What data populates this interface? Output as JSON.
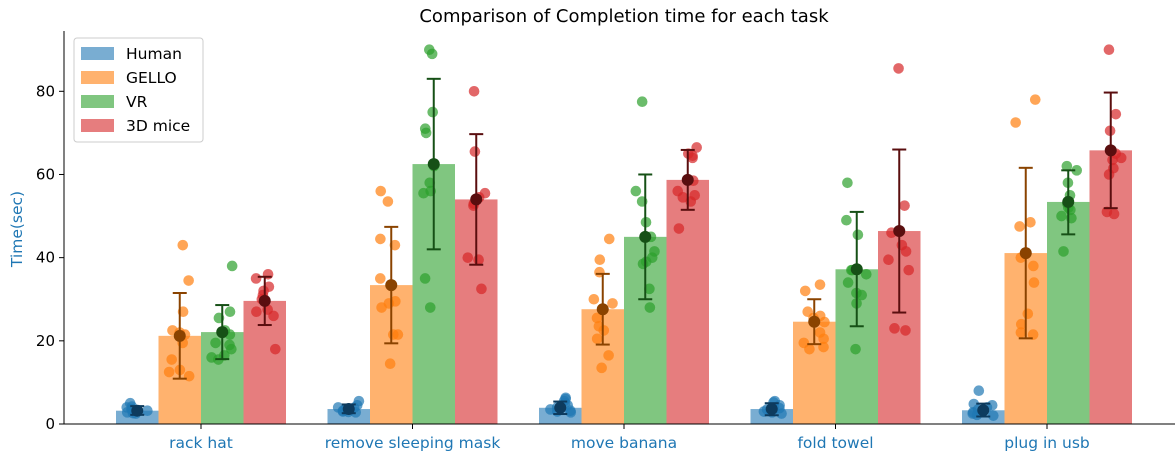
{
  "chart_data": {
    "type": "bar",
    "title": "Comparison of Completion time for each task",
    "xlabel": "",
    "ylabel": "Time(sec)",
    "ylim": [
      0,
      94.5
    ],
    "yticks": [
      0,
      20,
      40,
      60,
      80
    ],
    "legend_position": "top-left",
    "grid": false,
    "label_color": "#1f77b4",
    "categories": [
      "rack hat",
      "remove sleeping mask",
      "move banana",
      "fold towel",
      "plug in usb"
    ],
    "series": [
      {
        "name": "Human",
        "bar_color": "#1f77b4",
        "dot_color": "#1f77b4",
        "mean_color": "#0d3b5e",
        "values": [
          3.2,
          3.6,
          3.9,
          3.6,
          3.3
        ],
        "err_low": [
          2.2,
          2.6,
          2.4,
          2.1,
          1.8
        ],
        "err_high": [
          4.3,
          4.7,
          5.4,
          5.0,
          4.9
        ],
        "points": [
          [
            2.5,
            3.0,
            3.5,
            4.0,
            5.0,
            2.8,
            3.2,
            4.2,
            3.6,
            2.6
          ],
          [
            3.0,
            3.5,
            4.0,
            5.5,
            2.8,
            3.2,
            4.5,
            3.7,
            2.9,
            3.9
          ],
          [
            3.0,
            4.0,
            5.0,
            6.0,
            6.3,
            3.5,
            2.8,
            4.5,
            3.2,
            5.5
          ],
          [
            2.5,
            3.5,
            4.0,
            5.5,
            3.0,
            4.5,
            2.8,
            3.8,
            5.2,
            3.3
          ],
          [
            2.0,
            3.0,
            4.0,
            4.5,
            8.0,
            2.5,
            3.5,
            2.2,
            4.8,
            2.8
          ]
        ]
      },
      {
        "name": "GELLO",
        "bar_color": "#ff7f0e",
        "dot_color": "#ff7f0e",
        "mean_color": "#8a4300",
        "values": [
          21.2,
          33.4,
          27.6,
          24.6,
          41.1
        ],
        "err_low": [
          10.9,
          19.4,
          19.1,
          19.2,
          20.6
        ],
        "err_high": [
          31.5,
          47.4,
          36.1,
          30.0,
          61.6
        ],
        "points": [
          [
            43.0,
            34.5,
            27.0,
            22.5,
            21.5,
            19.5,
            15.5,
            13.0,
            12.5,
            11.5,
            22.0
          ],
          [
            56.0,
            53.5,
            44.5,
            43.0,
            35.0,
            29.5,
            29.0,
            21.5,
            21.5,
            14.5,
            28.0
          ],
          [
            44.5,
            39.5,
            36.5,
            30.0,
            29.0,
            25.5,
            23.5,
            22.5,
            20.5,
            16.5,
            13.5
          ],
          [
            33.5,
            32.0,
            27.0,
            26.0,
            25.5,
            24.5,
            20.5,
            19.5,
            18.5,
            18.0,
            22.0
          ],
          [
            78.0,
            72.5,
            48.5,
            47.5,
            38.0,
            34.0,
            26.5,
            24.0,
            22.0,
            21.5,
            40.0
          ]
        ]
      },
      {
        "name": "VR",
        "bar_color": "#2ca02c",
        "dot_color": "#2ca02c",
        "mean_color": "#165016",
        "values": [
          22.1,
          62.5,
          45.0,
          37.2,
          53.4
        ],
        "err_low": [
          15.6,
          42.0,
          30.0,
          23.5,
          45.6
        ],
        "err_high": [
          28.6,
          83.0,
          60.0,
          51.0,
          61.0
        ],
        "points": [
          [
            38.0,
            27.0,
            25.5,
            22.5,
            21.5,
            19.5,
            19.0,
            18.0,
            16.5,
            16.0,
            15.5
          ],
          [
            90.0,
            89.0,
            75.0,
            71.0,
            70.0,
            58.0,
            56.0,
            55.5,
            35.0,
            28.0,
            62.0
          ],
          [
            77.5,
            56.0,
            53.5,
            48.5,
            41.5,
            40.0,
            39.0,
            38.5,
            32.5,
            28.0,
            45.0
          ],
          [
            58.0,
            49.0,
            45.5,
            37.0,
            36.0,
            34.0,
            31.5,
            31.0,
            29.0,
            18.0,
            37.0
          ],
          [
            62.0,
            61.0,
            58.0,
            55.0,
            52.0,
            51.5,
            50.0,
            49.5,
            41.5,
            53.0
          ]
        ]
      },
      {
        "name": "3D mice",
        "bar_color": "#d62728",
        "dot_color": "#d62728",
        "mean_color": "#5a0e0f",
        "values": [
          29.6,
          54.0,
          58.7,
          46.4,
          65.8
        ],
        "err_low": [
          23.8,
          38.3,
          51.5,
          26.8,
          51.9
        ],
        "err_high": [
          35.4,
          69.7,
          65.9,
          66.0,
          79.7
        ],
        "points": [
          [
            36.0,
            35.0,
            33.0,
            32.0,
            31.0,
            27.5,
            27.0,
            26.0,
            18.0,
            30.0
          ],
          [
            80.0,
            65.5,
            55.5,
            54.5,
            54.0,
            52.5,
            40.0,
            39.5,
            32.5,
            53.0
          ],
          [
            66.5,
            65.0,
            64.5,
            64.0,
            58.5,
            56.0,
            55.0,
            54.5,
            53.5,
            47.0
          ],
          [
            85.5,
            52.5,
            43.0,
            41.5,
            39.5,
            37.0,
            23.0,
            22.5,
            46.0
          ],
          [
            90.0,
            74.5,
            70.5,
            64.0,
            63.5,
            61.5,
            60.0,
            51.0,
            50.5,
            65.0
          ]
        ]
      }
    ]
  }
}
